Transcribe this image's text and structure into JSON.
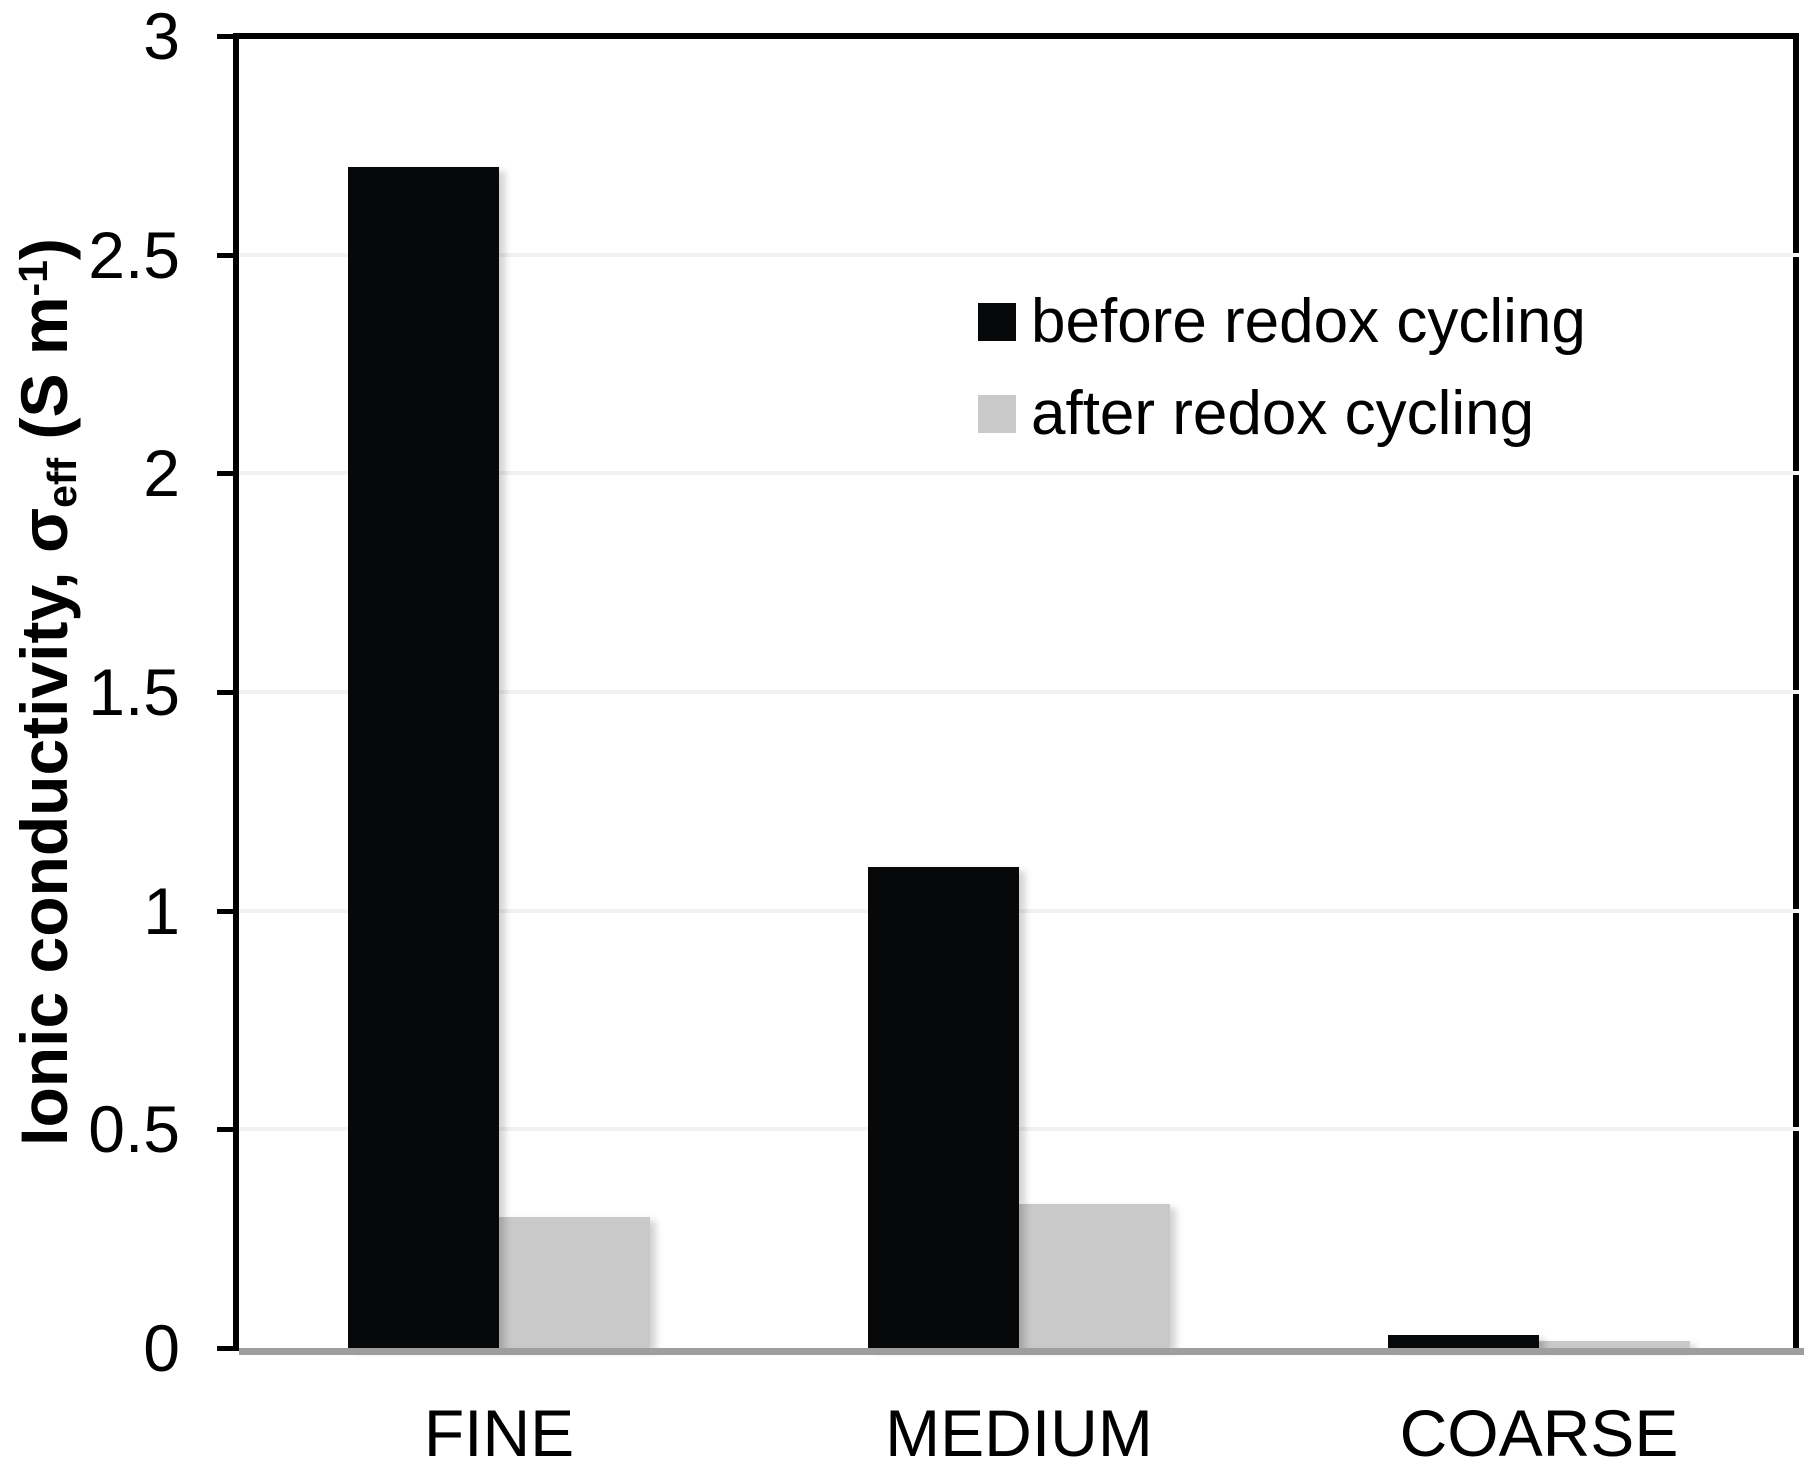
{
  "chart_data": {
    "type": "bar",
    "title": "",
    "categories": [
      "FINE",
      "MEDIUM",
      "COARSE"
    ],
    "series": [
      {
        "name": "before redox cycling",
        "color": "#070809",
        "values": [
          2.7,
          1.1,
          0.03
        ]
      },
      {
        "name": "after redox cycling",
        "color": "#c9c9c9",
        "values": [
          0.3,
          0.33,
          0.015
        ]
      }
    ],
    "ylabel_parts": {
      "prefix": "Ionic conductivity, σ",
      "sub": "eff",
      "mid": " (S m",
      "sup": "-1",
      "suffix": ")"
    },
    "ylabel_plain": "Ionic conductivity, σeff (S m-1)",
    "xlabel": "",
    "ylim": [
      0,
      3
    ],
    "yticks": [
      3,
      2.5,
      2,
      1.5,
      1,
      0.5,
      0
    ],
    "ytick_labels": [
      "3",
      "2.5",
      "2",
      "1.5",
      "1",
      "0.5",
      "0"
    ],
    "grid": true,
    "gridline_color": "#f2f2f2",
    "baseline_color": "#9e9e9e",
    "frame_color": "#000000",
    "legend_position": "upper-right-inside",
    "legend": [
      "before redox cycling",
      "after redox cycling"
    ]
  }
}
